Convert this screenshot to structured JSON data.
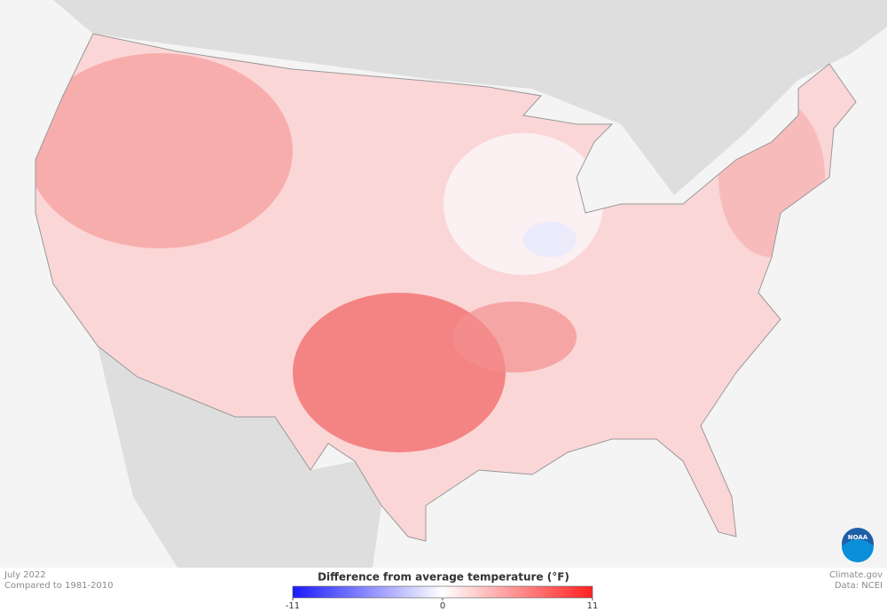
{
  "header": {
    "period": "July 2022",
    "baseline": "Compared to 1981-2010"
  },
  "legend": {
    "title": "Difference from average temperature (°F)",
    "range": [
      -11,
      11
    ],
    "ticks": [
      -11,
      0,
      11
    ],
    "colors": [
      "#1a1aff",
      "#ffffff",
      "#ff2020"
    ]
  },
  "credits": {
    "source": "Climate.gov",
    "data": "Data: NCEI",
    "logo": "NOAA"
  }
}
